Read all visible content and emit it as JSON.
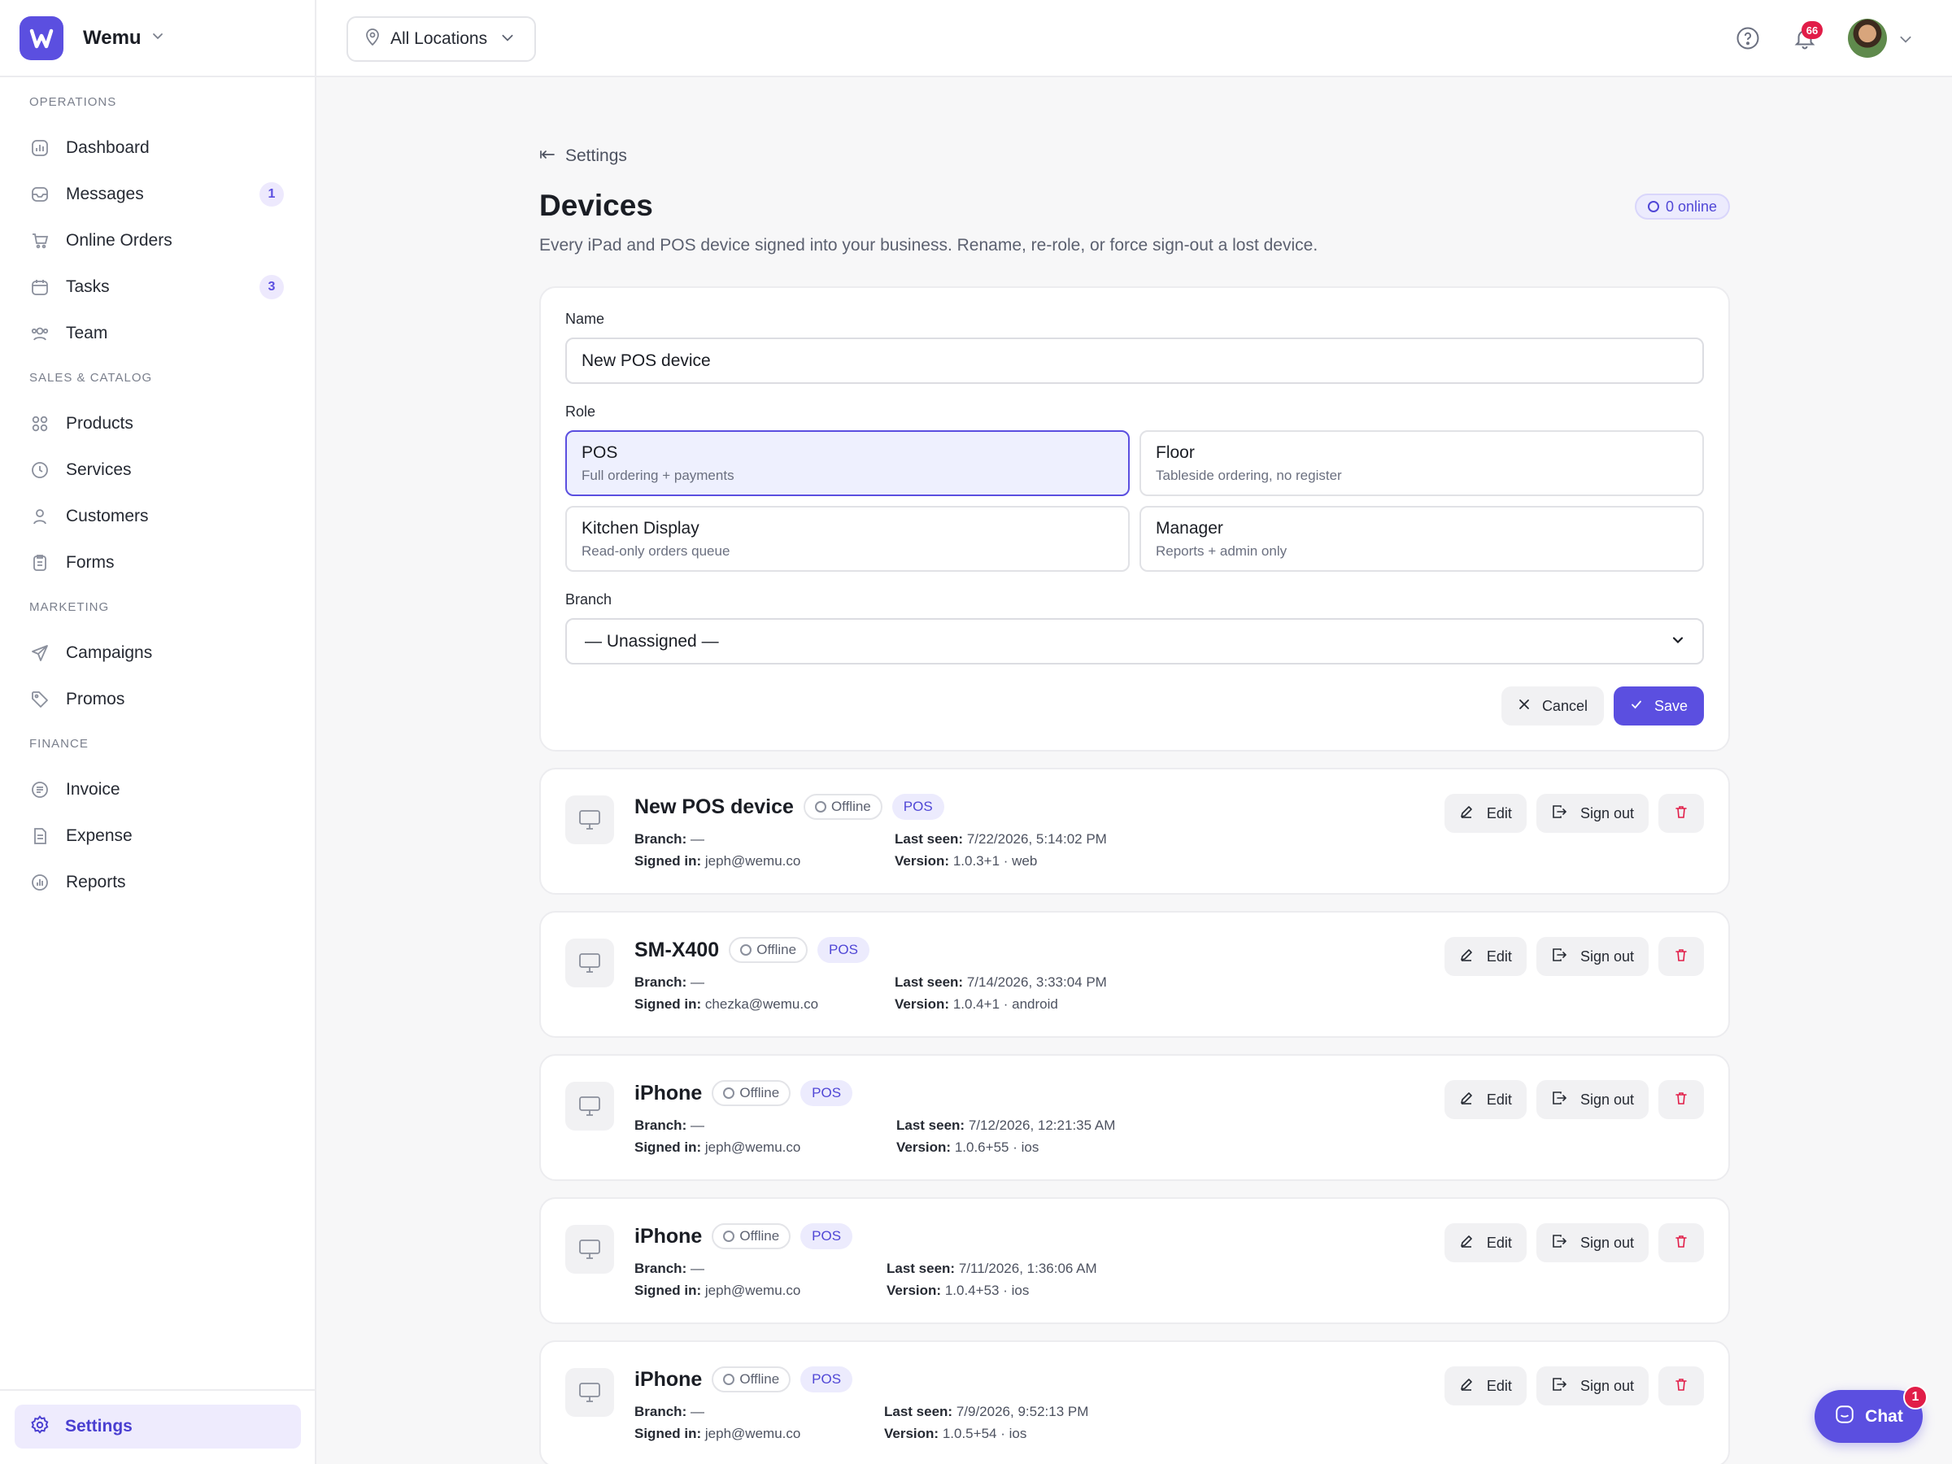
{
  "app": {
    "name": "Wemu"
  },
  "colors": {
    "accent": "#5b4fe0",
    "danger": "#e11d48",
    "online_badge_bg": "#ecebfd"
  },
  "sidebar": {
    "sections": [
      {
        "title": "OPERATIONS",
        "items": [
          {
            "label": "Dashboard",
            "icon": "bar-chart-icon"
          },
          {
            "label": "Messages",
            "icon": "inbox-icon",
            "count": "1"
          },
          {
            "label": "Online Orders",
            "icon": "cart-icon"
          },
          {
            "label": "Tasks",
            "icon": "calendar-icon",
            "count": "3"
          },
          {
            "label": "Team",
            "icon": "users-icon"
          }
        ]
      },
      {
        "title": "SALES & CATALOG",
        "items": [
          {
            "label": "Products",
            "icon": "grid-icon"
          },
          {
            "label": "Services",
            "icon": "clock-icon"
          },
          {
            "label": "Customers",
            "icon": "user-icon"
          },
          {
            "label": "Forms",
            "icon": "clipboard-icon"
          }
        ]
      },
      {
        "title": "MARKETING",
        "items": [
          {
            "label": "Campaigns",
            "icon": "send-icon"
          },
          {
            "label": "Promos",
            "icon": "tag-icon"
          }
        ]
      },
      {
        "title": "FINANCE",
        "items": [
          {
            "label": "Invoice",
            "icon": "invoice-icon"
          },
          {
            "label": "Expense",
            "icon": "receipt-icon"
          },
          {
            "label": "Reports",
            "icon": "report-icon"
          }
        ]
      }
    ],
    "settings_label": "Settings"
  },
  "topbar": {
    "location": "All Locations",
    "notification_count": "66"
  },
  "page": {
    "back_label": "Settings",
    "title": "Devices",
    "online_badge": "0 online",
    "subtitle": "Every iPad and POS device signed into your business. Rename, re-role, or force sign-out a lost device."
  },
  "form": {
    "name_label": "Name",
    "name_value": "New POS device",
    "role_label": "Role",
    "roles": [
      {
        "name": "POS",
        "desc": "Full ordering + payments",
        "selected": true
      },
      {
        "name": "Floor",
        "desc": "Tableside ordering, no register",
        "selected": false
      },
      {
        "name": "Kitchen Display",
        "desc": "Read-only orders queue",
        "selected": false
      },
      {
        "name": "Manager",
        "desc": "Reports + admin only",
        "selected": false
      }
    ],
    "branch_label": "Branch",
    "branch_value": "— Unassigned —",
    "cancel_label": "Cancel",
    "save_label": "Save"
  },
  "device_labels": {
    "branch": "Branch:",
    "signed_in": "Signed in:",
    "last_seen": "Last seen:",
    "version": "Version:",
    "edit": "Edit",
    "sign_out": "Sign out"
  },
  "devices": [
    {
      "name": "New POS device",
      "status": "Offline",
      "role": "POS",
      "branch": "—",
      "signed_in": "jeph@wemu.co",
      "last_seen": "7/22/2026, 5:14:02 PM",
      "version": "1.0.3+1 · web"
    },
    {
      "name": "SM-X400",
      "status": "Offline",
      "role": "POS",
      "branch": "—",
      "signed_in": "chezka@wemu.co",
      "last_seen": "7/14/2026, 3:33:04 PM",
      "version": "1.0.4+1 · android"
    },
    {
      "name": "iPhone",
      "status": "Offline",
      "role": "POS",
      "branch": "—",
      "signed_in": "jeph@wemu.co",
      "last_seen": "7/12/2026, 12:21:35 AM",
      "version": "1.0.6+55 · ios"
    },
    {
      "name": "iPhone",
      "status": "Offline",
      "role": "POS",
      "branch": "—",
      "signed_in": "jeph@wemu.co",
      "last_seen": "7/11/2026, 1:36:06 AM",
      "version": "1.0.4+53 · ios"
    },
    {
      "name": "iPhone",
      "status": "Offline",
      "role": "POS",
      "branch": "—",
      "signed_in": "jeph@wemu.co",
      "last_seen": "7/9/2026, 9:52:13 PM",
      "version": "1.0.5+54 · ios"
    }
  ],
  "chat": {
    "label": "Chat",
    "badge": "1"
  }
}
